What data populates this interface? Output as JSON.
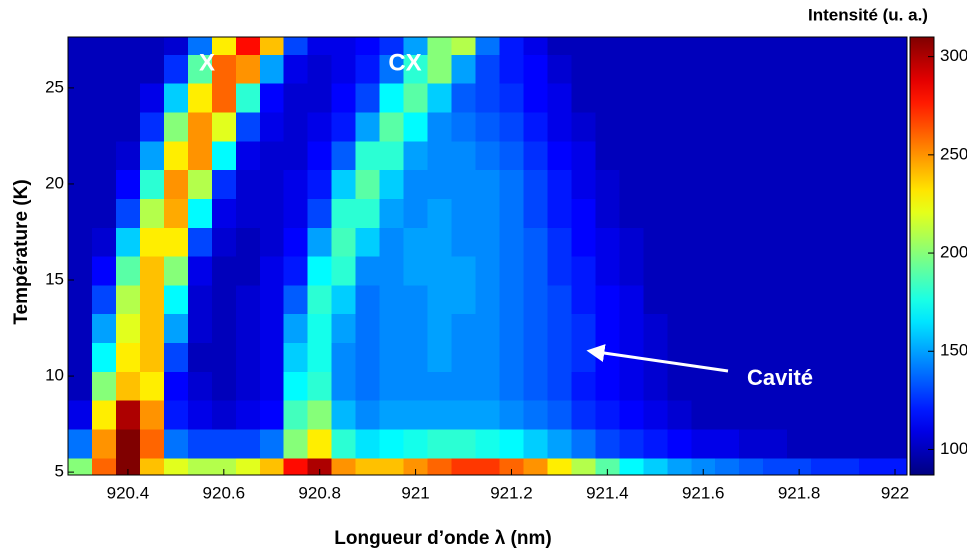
{
  "chart_data": {
    "type": "heatmap",
    "xlabel": "Longueur d’onde λ (nm)",
    "ylabel": "Température (K)",
    "colormap": "jet",
    "colorbar": {
      "label": "Intensité (u. a.)",
      "lim": [
        87,
        310
      ],
      "ticks": [
        100,
        150,
        200,
        250,
        300
      ]
    },
    "annotations": [
      "X",
      "CX",
      "Cavité"
    ],
    "xlim": [
      920.275,
      922.025
    ],
    "ylim": [
      4.85,
      27.65
    ],
    "xticks": [
      920.4,
      920.6,
      920.8,
      921,
      921.2,
      921.4,
      921.6,
      921.8,
      922
    ],
    "yticks": [
      5,
      10,
      15,
      20,
      25
    ],
    "x": [
      920.3,
      920.35,
      920.4,
      920.45,
      920.5,
      920.55,
      920.6,
      920.65,
      920.7,
      920.75,
      920.8,
      920.85,
      920.9,
      920.95,
      921.0,
      921.05,
      921.1,
      921.15,
      921.2,
      921.25,
      921.3,
      921.35,
      921.4,
      921.45,
      921.5,
      921.55,
      921.6,
      921.65,
      921.7,
      921.75,
      921.8,
      921.85,
      921.9,
      921.95,
      922.0
    ],
    "y": [
      5,
      6.5,
      8,
      9.5,
      11,
      12.5,
      14,
      15.5,
      17,
      18.5,
      20,
      21.5,
      23,
      24.5,
      26,
      27.5
    ],
    "z": [
      [
        200,
        260,
        310,
        240,
        220,
        210,
        210,
        220,
        240,
        280,
        300,
        250,
        240,
        240,
        250,
        260,
        270,
        270,
        260,
        250,
        230,
        210,
        190,
        170,
        160,
        150,
        145,
        140,
        135,
        130,
        130,
        125,
        125,
        120,
        120
      ],
      [
        140,
        250,
        310,
        260,
        140,
        130,
        130,
        130,
        140,
        200,
        230,
        180,
        165,
        170,
        175,
        180,
        180,
        175,
        170,
        160,
        150,
        140,
        130,
        125,
        120,
        115,
        110,
        110,
        105,
        105,
        100,
        100,
        100,
        100,
        100
      ],
      [
        110,
        230,
        300,
        250,
        120,
        110,
        105,
        110,
        115,
        185,
        200,
        155,
        145,
        150,
        150,
        150,
        150,
        150,
        145,
        140,
        135,
        125,
        120,
        115,
        110,
        105,
        100,
        100,
        100,
        100,
        100,
        100,
        100,
        100,
        100
      ],
      [
        100,
        200,
        240,
        230,
        115,
        105,
        100,
        105,
        110,
        170,
        180,
        145,
        140,
        145,
        145,
        145,
        145,
        145,
        140,
        135,
        130,
        120,
        115,
        110,
        105,
        100,
        100,
        100,
        100,
        100,
        100,
        100,
        100,
        100,
        100
      ],
      [
        100,
        170,
        230,
        240,
        130,
        100,
        100,
        105,
        110,
        160,
        175,
        145,
        140,
        145,
        145,
        150,
        145,
        145,
        140,
        135,
        130,
        125,
        115,
        110,
        105,
        100,
        100,
        100,
        100,
        100,
        100,
        100,
        100,
        100,
        100
      ],
      [
        100,
        150,
        220,
        240,
        150,
        105,
        100,
        105,
        110,
        150,
        175,
        150,
        140,
        145,
        145,
        150,
        145,
        145,
        140,
        135,
        130,
        125,
        115,
        110,
        105,
        100,
        100,
        100,
        100,
        100,
        100,
        100,
        100,
        100,
        100
      ],
      [
        100,
        130,
        210,
        240,
        170,
        105,
        100,
        105,
        110,
        135,
        180,
        160,
        140,
        145,
        145,
        150,
        150,
        145,
        140,
        135,
        130,
        120,
        115,
        110,
        100,
        100,
        100,
        100,
        100,
        100,
        100,
        100,
        100,
        100,
        100
      ],
      [
        100,
        115,
        190,
        240,
        200,
        110,
        100,
        100,
        110,
        120,
        170,
        180,
        145,
        145,
        150,
        150,
        150,
        145,
        140,
        135,
        125,
        120,
        110,
        105,
        100,
        100,
        100,
        100,
        100,
        100,
        100,
        100,
        100,
        100,
        100
      ],
      [
        100,
        105,
        160,
        230,
        230,
        130,
        105,
        100,
        105,
        115,
        150,
        185,
        160,
        145,
        150,
        150,
        145,
        145,
        140,
        135,
        125,
        115,
        110,
        105,
        100,
        100,
        100,
        100,
        100,
        100,
        100,
        100,
        100,
        100,
        100
      ],
      [
        100,
        100,
        130,
        210,
        245,
        170,
        110,
        105,
        105,
        110,
        130,
        180,
        180,
        150,
        145,
        150,
        145,
        145,
        140,
        130,
        120,
        115,
        105,
        100,
        100,
        100,
        100,
        100,
        100,
        100,
        100,
        100,
        100,
        100,
        100
      ],
      [
        100,
        100,
        115,
        180,
        250,
        210,
        125,
        105,
        105,
        110,
        120,
        160,
        190,
        160,
        145,
        145,
        145,
        145,
        140,
        130,
        120,
        110,
        105,
        100,
        100,
        100,
        100,
        100,
        100,
        100,
        100,
        100,
        100,
        100,
        100
      ],
      [
        100,
        100,
        105,
        150,
        230,
        250,
        170,
        110,
        105,
        105,
        115,
        135,
        180,
        180,
        150,
        145,
        145,
        140,
        135,
        125,
        115,
        110,
        100,
        100,
        100,
        100,
        100,
        100,
        100,
        100,
        100,
        100,
        100,
        100,
        100
      ],
      [
        100,
        100,
        100,
        125,
        200,
        250,
        220,
        130,
        110,
        105,
        110,
        120,
        150,
        190,
        170,
        145,
        140,
        135,
        130,
        120,
        110,
        105,
        100,
        100,
        100,
        100,
        100,
        100,
        100,
        100,
        100,
        100,
        100,
        100,
        100
      ],
      [
        100,
        100,
        100,
        110,
        160,
        230,
        260,
        180,
        115,
        105,
        105,
        115,
        130,
        170,
        190,
        160,
        135,
        130,
        125,
        115,
        110,
        100,
        100,
        100,
        100,
        100,
        100,
        100,
        100,
        100,
        100,
        100,
        100,
        100,
        100
      ],
      [
        100,
        100,
        100,
        100,
        125,
        190,
        260,
        250,
        150,
        110,
        105,
        110,
        120,
        140,
        180,
        200,
        150,
        130,
        120,
        115,
        105,
        100,
        100,
        100,
        100,
        100,
        100,
        100,
        100,
        100,
        100,
        100,
        100,
        100,
        100
      ],
      [
        100,
        100,
        100,
        100,
        105,
        140,
        230,
        280,
        240,
        130,
        110,
        110,
        115,
        125,
        150,
        200,
        210,
        140,
        120,
        110,
        100,
        100,
        100,
        100,
        100,
        100,
        100,
        100,
        100,
        100,
        100,
        100,
        100,
        100,
        100
      ]
    ]
  }
}
